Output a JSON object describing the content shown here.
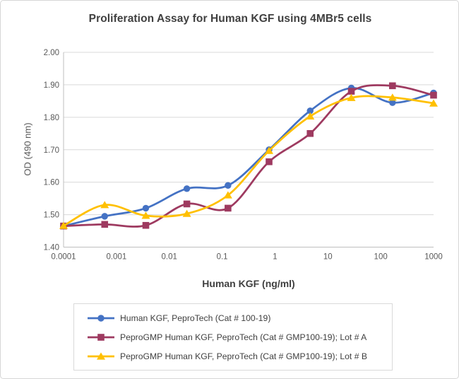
{
  "chart_data": {
    "type": "line",
    "title": "Proliferation Assay for Human KGF using 4MBr5 cells",
    "xlabel": "Human KGF (ng/ml)",
    "ylabel": "OD (490 nm)",
    "x_scale": "log",
    "xlim": [
      0.0001,
      1000
    ],
    "ylim": [
      1.4,
      2.0
    ],
    "grid": "horizontal",
    "legend_position": "bottom",
    "x_tick_labels": [
      "0.0001",
      "0.001",
      "0.01",
      "0.1",
      "1",
      "10",
      "100",
      "1000"
    ],
    "y_tick_labels": [
      "1.40",
      "1.50",
      "1.60",
      "1.70",
      "1.80",
      "1.90",
      "2.00"
    ],
    "x": [
      0.0001,
      0.0006,
      0.0036,
      0.0215,
      0.129,
      0.772,
      4.63,
      27.8,
      167,
      1000
    ],
    "series": [
      {
        "name": "Human KGF, PeproTech (Cat # 100-19)",
        "color": "#4472C4",
        "marker": "circle",
        "values": [
          1.465,
          1.495,
          1.52,
          1.58,
          1.59,
          1.7,
          1.82,
          1.89,
          1.845,
          1.875
        ]
      },
      {
        "name": "PeproGMP Human KGF, PeproTech (Cat # GMP100-19); Lot # A",
        "color": "#9E3A60",
        "marker": "square",
        "values": [
          1.465,
          1.47,
          1.467,
          1.533,
          1.52,
          1.663,
          1.75,
          1.88,
          1.897,
          1.868
        ]
      },
      {
        "name": "PeproGMP Human KGF, PeproTech (Cat # GMP100-19); Lot # B",
        "color": "#FFC000",
        "marker": "triangle",
        "values": [
          1.466,
          1.53,
          1.497,
          1.503,
          1.56,
          1.697,
          1.803,
          1.86,
          1.861,
          1.843
        ]
      }
    ],
    "style": {
      "grid_color": "#D9D9D9",
      "axis_color": "#BFBFBF",
      "tick_text_color": "#595959"
    }
  }
}
